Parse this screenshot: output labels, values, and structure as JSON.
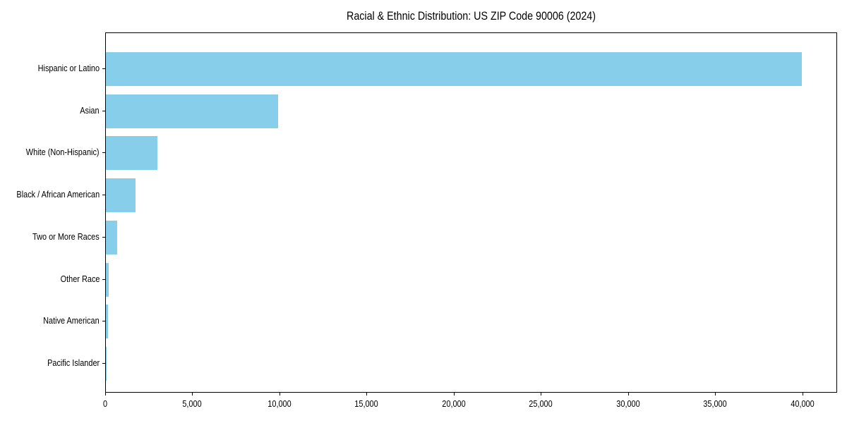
{
  "title": "Racial & Ethnic Distribution: US ZIP Code 90006 (2024)",
  "chart_data": {
    "type": "bar",
    "orientation": "horizontal",
    "title": "Racial & Ethnic Distribution: US ZIP Code 90006 (2024)",
    "xlabel": "",
    "ylabel": "",
    "categories": [
      "Hispanic or Latino",
      "Asian",
      "White (Non-Hispanic)",
      "Black / African American",
      "Two or More Races",
      "Other Race",
      "Native American",
      "Pacific Islander"
    ],
    "values": [
      39950,
      9900,
      2950,
      1700,
      650,
      150,
      110,
      30
    ],
    "xlim": [
      0,
      42000
    ],
    "x_ticks": [
      0,
      5000,
      10000,
      15000,
      20000,
      25000,
      30000,
      35000,
      40000
    ],
    "x_tick_labels": [
      "0",
      "5,000",
      "10,000",
      "15,000",
      "20,000",
      "25,000",
      "30,000",
      "35,000",
      "40,000"
    ],
    "bar_color": "#87CEEB",
    "spine_color": "#000000",
    "background_color": "#ffffff",
    "grid": false,
    "legend": null
  }
}
